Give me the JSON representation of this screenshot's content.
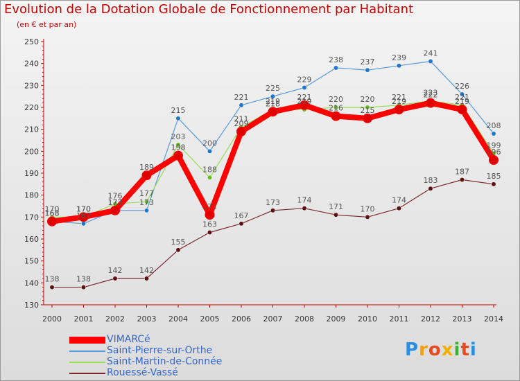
{
  "title": "Evolution de la Dotation Globale de Fonctionnement par Habitant",
  "subtitle": "(en € et par an)",
  "brand": {
    "letters": [
      "P",
      "r",
      "o",
      "x",
      "i",
      "t",
      "i"
    ],
    "colors": [
      "#2a8fe0",
      "#f0a010",
      "#e84820",
      "#f0b000",
      "#40b030",
      "#e84820",
      "#2a8fe0"
    ]
  },
  "chart_data": {
    "type": "line",
    "title": "Evolution de la Dotation Globale de Fonctionnement par Habitant",
    "subtitle": "(en € et par an)",
    "xlabel": "",
    "ylabel": "",
    "categories": [
      "2000",
      "2001",
      "2002",
      "2003",
      "2004",
      "2005",
      "2006",
      "2007",
      "2008",
      "2009",
      "2010",
      "2011",
      "2012",
      "2013",
      "2014"
    ],
    "ylim": [
      130,
      250
    ],
    "yticks": [
      130,
      140,
      150,
      160,
      170,
      180,
      190,
      200,
      210,
      220,
      230,
      240,
      250
    ],
    "grid": false,
    "legend_position": "bottom-left",
    "series": [
      {
        "name": "VIMARCé",
        "color": "#ff0000",
        "marker": "#e00000",
        "emphasis": true,
        "values": [
          168,
          170,
          173,
          189,
          198,
          171,
          209,
          218,
          221,
          216,
          215,
          219,
          222,
          219,
          196
        ],
        "labels": [
          "168",
          "170",
          "173",
          "189",
          "198",
          "171",
          "209",
          "218",
          "221",
          "216",
          "215",
          "219",
          "222",
          "219",
          "196"
        ]
      },
      {
        "name": "Saint-Pierre-sur-Orthe",
        "color": "#5599dd",
        "marker": "#2277cc",
        "values": [
          168,
          167,
          173,
          173,
          215,
          200,
          221,
          225,
          229,
          238,
          237,
          239,
          241,
          226,
          208
        ],
        "labels": [
          "168",
          "167",
          "173",
          "173",
          "215",
          "200",
          "221",
          "225",
          "229",
          "238",
          "237",
          "239",
          "241",
          "226",
          "208"
        ]
      },
      {
        "name": "Saint-Martin-de-Connée",
        "color": "#99dd55",
        "marker": "#66bb22",
        "values": [
          170,
          170,
          176,
          177,
          203,
          188,
          211,
          219,
          219,
          220,
          220,
          221,
          223,
          221,
          199
        ],
        "labels": [
          "170",
          "170",
          "176",
          "177",
          "203",
          "188",
          "211",
          "219",
          "219",
          "220",
          "220",
          "221",
          "223",
          "221",
          "199"
        ]
      },
      {
        "name": "Rouessé-Vassé",
        "color": "#7a2a2a",
        "marker": "#5a1010",
        "values": [
          138,
          138,
          142,
          142,
          155,
          163,
          167,
          173,
          174,
          171,
          170,
          174,
          183,
          187,
          185
        ],
        "labels": [
          "138",
          "138",
          "142",
          "142",
          "155",
          "163",
          "167",
          "173",
          "174",
          "171",
          "170",
          "174",
          "183",
          "187",
          "185"
        ]
      }
    ]
  }
}
